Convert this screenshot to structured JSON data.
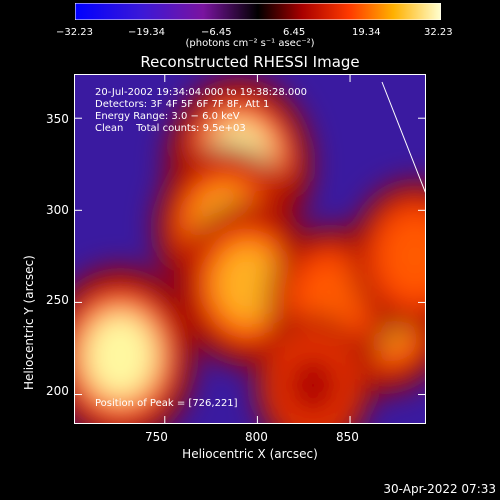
{
  "colorbar": {
    "ticks": [
      "−32.23",
      "−19.34",
      "−6.45",
      "6.45",
      "19.34",
      "32.23"
    ],
    "range": [
      -32.23,
      32.23
    ],
    "unit_label": "(photons cm⁻² s⁻¹ asec⁻²)"
  },
  "chart_data": {
    "type": "heatmap",
    "title": "Reconstructed RHESSI Image",
    "xlabel": "Heliocentric X (arcsec)",
    "ylabel": "Heliocentric Y (arcsec)",
    "xlim": [
      701,
      891
    ],
    "ylim": [
      184,
      374
    ],
    "x_ticks": [
      "750",
      "800",
      "850"
    ],
    "y_ticks": [
      "200",
      "250",
      "300",
      "350"
    ],
    "annotations": [
      "20-Jul-2002 19:34:04.000 to 19:38:28.000",
      "Detectors: 3F 4F 5F 6F 7F 8F, Att 1",
      "Energy Range: 3.0 − 6.0 keV",
      "Clean    Total counts: 9.5e+03"
    ],
    "peak_label": "Position of Peak = [726,221]",
    "peak": [
      726,
      221
    ],
    "hot_regions": [
      {
        "x": 790,
        "y": 325,
        "level": 0.95
      },
      {
        "x": 783,
        "y": 290,
        "level": 0.9
      },
      {
        "x": 795,
        "y": 260,
        "level": 0.85
      },
      {
        "x": 726,
        "y": 221,
        "level": 1.0
      },
      {
        "x": 868,
        "y": 245,
        "level": 0.85
      },
      {
        "x": 840,
        "y": 250,
        "level": 0.7
      },
      {
        "x": 830,
        "y": 205,
        "level": 0.55
      },
      {
        "x": 885,
        "y": 275,
        "level": 0.7
      }
    ]
  },
  "footer": {
    "date": "30-Apr-2022 07:33"
  }
}
